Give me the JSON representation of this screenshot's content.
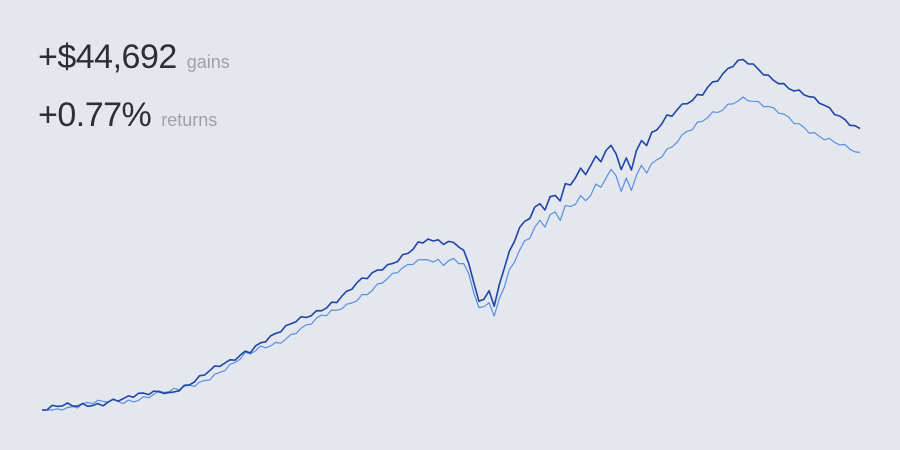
{
  "summary": {
    "gains_value": "+$44,692",
    "gains_label": "gains",
    "returns_value": "+0.77%",
    "returns_label": "returns"
  },
  "colors": {
    "background": "#e4e7ee",
    "portfolio_line": "#1f45a6",
    "benchmark_line": "#5a8fe0"
  },
  "chart_data": {
    "type": "line",
    "title": "",
    "xlabel": "",
    "ylabel": "",
    "grid": false,
    "legend": "none",
    "x": [
      0,
      1,
      2,
      3,
      4,
      5,
      6,
      7,
      8,
      9,
      10,
      11,
      12,
      13,
      14,
      15,
      16,
      17,
      18,
      19,
      20,
      21,
      22,
      23,
      24,
      25,
      26,
      27,
      28,
      29,
      30,
      31,
      32,
      33,
      34,
      35,
      36,
      37,
      38,
      39,
      40,
      41,
      42,
      43,
      44,
      45,
      46,
      47,
      48,
      49,
      50,
      51,
      52,
      53,
      54,
      55,
      56,
      57,
      58,
      59,
      60,
      61,
      62,
      63,
      64,
      65,
      66,
      67,
      68,
      69,
      70,
      71,
      72,
      73,
      74,
      75,
      76,
      77,
      78,
      79,
      80,
      81,
      82,
      83,
      84,
      85,
      86,
      87,
      88,
      89,
      90,
      91,
      92,
      93,
      94,
      95,
      96,
      97,
      98,
      99,
      100,
      101,
      102,
      103,
      104,
      105,
      106,
      107,
      108,
      109,
      110,
      111,
      112,
      113,
      114,
      115,
      116,
      117,
      118,
      119,
      120,
      121,
      122,
      123,
      124,
      125,
      126,
      127,
      128,
      129,
      130,
      131,
      132,
      133,
      134,
      135,
      136,
      137,
      138,
      139,
      140,
      141,
      142,
      143,
      144,
      145,
      146,
      147,
      148,
      149,
      150,
      151,
      152,
      153,
      154,
      155,
      156,
      157,
      158,
      159,
      160,
      161
    ],
    "ylim": [
      0,
      100
    ],
    "series": [
      {
        "values": [
          0.0,
          0.2,
          0.4,
          0.6,
          0.9,
          1.0,
          1.1,
          1.2,
          1.5,
          1.8,
          1.9,
          2.0,
          2.2,
          2.6,
          2.9,
          3.0,
          2.8,
          3.3,
          3.6,
          3.9,
          4.2,
          4.6,
          5.0,
          5.4,
          5.6,
          5.1,
          5.9,
          6.4,
          7.0,
          7.6,
          8.2,
          9.0,
          9.9,
          10.8,
          11.6,
          12.5,
          13.2,
          14.0,
          15.0,
          16.0,
          17.2,
          17.5,
          18.6,
          19.5,
          20.2,
          20.8,
          21.6,
          22.4,
          23.2,
          24.3,
          25.3,
          26.1,
          26.8,
          27.6,
          28.5,
          29.4,
          30.0,
          31.0,
          31.6,
          32.8,
          33.6,
          34.8,
          35.9,
          37.0,
          37.7,
          38.8,
          39.8,
          40.8,
          41.7,
          42.5,
          43.7,
          44.8,
          45.5,
          46.8,
          47.8,
          48.0,
          49.0,
          47.5,
          48.6,
          47.2,
          47.6,
          48.4,
          47.0,
          45.8,
          43.0,
          37.0,
          31.5,
          32.8,
          34.3,
          29.6,
          36.3,
          39.9,
          45.0,
          48.3,
          51.5,
          53.9,
          55.3,
          58.0,
          59.8,
          58.3,
          61.4,
          62.5,
          60.7,
          64.8,
          65.0,
          66.5,
          68.6,
          67.5,
          69.6,
          72.1,
          71.5,
          74.3,
          76.0,
          74.5,
          69.3,
          72.9,
          70.0,
          74.5,
          77.6,
          76.3,
          79.0,
          80.1,
          82.0,
          83.7,
          84.2,
          86.2,
          87.4,
          88.6,
          89.4,
          90.8,
          91.5,
          93.2,
          94.3,
          95.1,
          96.3,
          97.5,
          98.7,
          99.6,
          100.0,
          99.5,
          98.8,
          97.9,
          97.0,
          96.2,
          95.4,
          94.7,
          93.8,
          92.9,
          92.0,
          91.3,
          90.5,
          89.6,
          88.8,
          88.0,
          87.1,
          86.3,
          85.4,
          84.6,
          83.7,
          82.9,
          82.0,
          81.2
        ],
        "color": "#1f45a6"
      },
      {
        "values": [
          0.0,
          0.2,
          0.4,
          0.6,
          0.8,
          0.9,
          1.0,
          1.1,
          1.3,
          1.6,
          1.7,
          1.8,
          2.0,
          2.3,
          2.6,
          2.7,
          2.5,
          2.9,
          3.2,
          3.5,
          3.8,
          4.1,
          4.5,
          4.8,
          5.0,
          4.6,
          5.3,
          5.8,
          6.3,
          6.8,
          7.4,
          8.1,
          8.9,
          9.7,
          10.4,
          11.2,
          11.9,
          12.6,
          13.5,
          14.4,
          15.5,
          15.8,
          16.7,
          17.6,
          18.2,
          18.7,
          19.4,
          20.2,
          20.9,
          21.9,
          22.8,
          23.5,
          24.1,
          24.8,
          25.6,
          26.5,
          27.0,
          27.9,
          28.4,
          29.5,
          30.2,
          31.3,
          32.3,
          33.3,
          33.9,
          34.9,
          35.8,
          36.7,
          37.5,
          38.3,
          39.3,
          40.3,
          41.0,
          42.1,
          43.0,
          43.2,
          44.1,
          42.8,
          43.7,
          42.5,
          42.8,
          43.6,
          42.3,
          41.2,
          38.7,
          33.3,
          28.4,
          29.5,
          30.9,
          26.6,
          32.7,
          35.9,
          40.5,
          43.5,
          46.4,
          48.5,
          49.8,
          52.2,
          53.8,
          52.5,
          55.3,
          56.2,
          54.6,
          58.3,
          58.5,
          59.9,
          61.7,
          60.8,
          62.6,
          64.9,
          64.4,
          66.9,
          68.4,
          67.1,
          62.4,
          65.6,
          63.0,
          67.1,
          69.8,
          68.7,
          71.1,
          72.1,
          73.8,
          75.3,
          75.8,
          77.6,
          78.7,
          79.7,
          80.5,
          81.7,
          82.4,
          83.9,
          84.9,
          85.6,
          86.7,
          87.8,
          88.8,
          89.6,
          90.0,
          89.6,
          88.9,
          88.1,
          87.3,
          86.6,
          85.9,
          85.2,
          84.4,
          83.6,
          82.8,
          82.2,
          81.5,
          80.6,
          79.9,
          79.2,
          78.4,
          77.7,
          76.9,
          76.1,
          75.3,
          74.6,
          73.8,
          73.1
        ],
        "color": "#5a8fe0"
      }
    ]
  }
}
